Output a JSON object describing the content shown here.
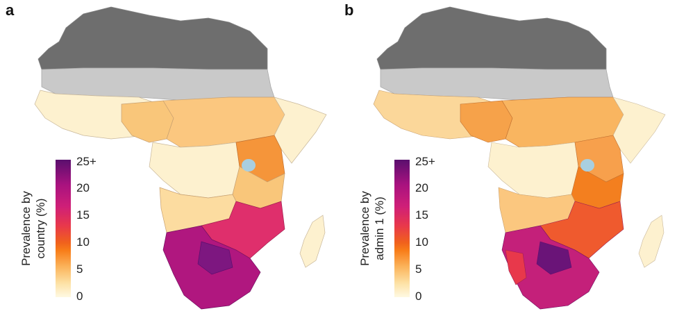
{
  "figure": {
    "panels": [
      {
        "letter": "a",
        "legend_title_line1": "Prevalence by",
        "legend_title_line2": "country (%)",
        "ticks": [
          "25+",
          "20",
          "15",
          "10",
          "5",
          "0"
        ]
      },
      {
        "letter": "b",
        "legend_title_line1": "Prevalence by",
        "legend_title_line2": "admin 1 (%)",
        "ticks": [
          "25+",
          "20",
          "15",
          "10",
          "5",
          "0"
        ]
      }
    ],
    "colors": {
      "north_dark": "#6e6e6e",
      "sahel_grey": "#c9c9c9",
      "low": "#fdf1cf",
      "light": "#fcdca0",
      "mid": "#f9b560",
      "orange": "#f37f1f",
      "magenta": "#df2f6c",
      "purple": "#a5127e",
      "water": "#a9cfe0"
    }
  }
}
